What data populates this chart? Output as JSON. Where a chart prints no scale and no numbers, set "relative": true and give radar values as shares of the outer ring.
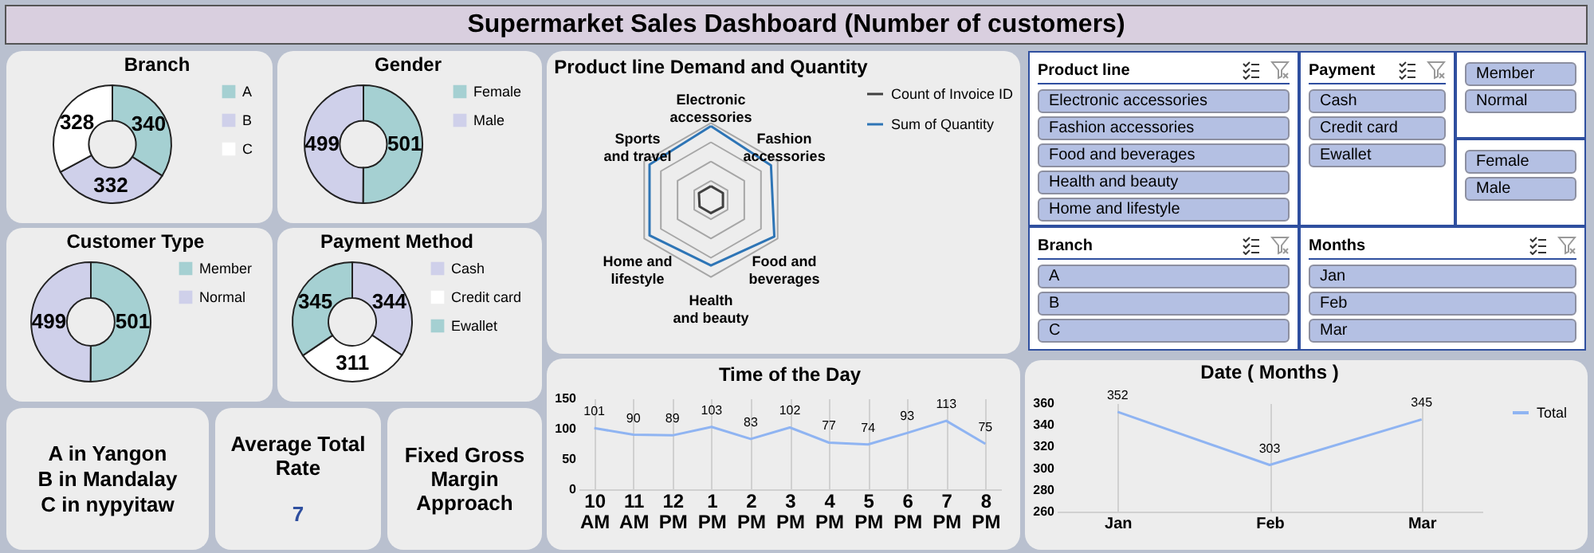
{
  "chart_data": [
    {
      "type": "other",
      "title": "Supermarket Sales Dashboard (Number of customers)"
    },
    {
      "type": "donut",
      "title": "Branch",
      "categories": [
        "A",
        "B",
        "C"
      ],
      "values": [
        340,
        332,
        328
      ],
      "colors": [
        "#a5d0d2",
        "#cfd0ea",
        "#ffffff"
      ],
      "data_labels": true,
      "legend": "right"
    },
    {
      "type": "donut",
      "title": "Gender",
      "categories": [
        "Female",
        "Male"
      ],
      "values": [
        501,
        499
      ],
      "colors": [
        "#a5d0d2",
        "#cfd0ea"
      ],
      "data_labels": true,
      "legend": "right"
    },
    {
      "type": "donut",
      "title": "Customer Type",
      "categories": [
        "Member",
        "Normal"
      ],
      "values": [
        501,
        499
      ],
      "colors": [
        "#a5d0d2",
        "#cfd0ea"
      ],
      "data_labels": true,
      "legend": "right"
    },
    {
      "type": "donut",
      "title": "Payment Method",
      "categories": [
        "Cash",
        "Credit card",
        "Ewallet"
      ],
      "values": [
        344,
        311,
        345
      ],
      "colors": [
        "#cfd0ea",
        "#ffffff",
        "#a5d0d2"
      ],
      "data_labels": true,
      "legend": "right"
    },
    {
      "type": "radar",
      "title": "Product line Demand and Quantity",
      "categories": [
        "Electronic accessories",
        "Fashion accessories",
        "Food and beverages",
        "Health and beauty",
        "Home and lifestyle",
        "Sports and travel"
      ],
      "relative": true,
      "grid": true,
      "legend": "right",
      "series": [
        {
          "name": "Count of Invoice ID",
          "color": "#404040",
          "values": [
            0.18,
            0.18,
            0.18,
            0.17,
            0.17,
            0.18
          ]
        },
        {
          "name": "Sum of Quantity",
          "color": "#2e75b6",
          "values": [
            0.96,
            0.9,
            0.95,
            0.85,
            0.92,
            0.92
          ]
        }
      ]
    },
    {
      "type": "other",
      "title": "Product line",
      "annotations": [
        "Electronic accessories",
        "Fashion accessories",
        "Food and beverages",
        "Health and beauty",
        "Home and lifestyle"
      ]
    },
    {
      "type": "other",
      "title": "Payment",
      "annotations": [
        "Cash",
        "Credit card",
        "Ewallet"
      ]
    },
    {
      "type": "other",
      "annotations": [
        "Member",
        "Normal"
      ]
    },
    {
      "type": "other",
      "annotations": [
        "Female",
        "Male"
      ]
    },
    {
      "type": "other",
      "title": "Branch",
      "annotations": [
        "A",
        "B",
        "C"
      ]
    },
    {
      "type": "other",
      "title": "Months",
      "annotations": [
        "Jan",
        "Feb",
        "Mar"
      ]
    },
    {
      "type": "other",
      "annotations": [
        "A in Yangon",
        "B in Mandalay",
        "C in nypyitaw"
      ]
    },
    {
      "type": "other",
      "title": "Average Total Rate",
      "annotations": [
        "7"
      ]
    },
    {
      "type": "other",
      "title": "Fixed Gross Margin Approach"
    },
    {
      "type": "line",
      "title": "Time of the Day",
      "categories": [
        "10 AM",
        "11 AM",
        "12 PM",
        "1 PM",
        "2 PM",
        "3 PM",
        "4 PM",
        "5 PM",
        "6 PM",
        "7 PM",
        "8 PM"
      ],
      "values": [
        101,
        90,
        89,
        103,
        83,
        102,
        77,
        74,
        93,
        113,
        75
      ],
      "color": "#8fb4f2",
      "ylim": [
        0,
        150
      ],
      "yticks": [
        0,
        50,
        100,
        150
      ],
      "grid": "x",
      "data_labels": true
    },
    {
      "type": "line",
      "title": "Date ( Months )",
      "categories": [
        "Jan",
        "Feb",
        "Mar"
      ],
      "series": [
        {
          "name": "Total",
          "color": "#8fb4f2",
          "values": [
            352,
            303,
            345
          ]
        }
      ],
      "ylim": [
        260,
        360
      ],
      "yticks": [
        260,
        280,
        300,
        320,
        340,
        360
      ],
      "grid": "x",
      "data_labels": true,
      "legend": "right"
    }
  ]
}
